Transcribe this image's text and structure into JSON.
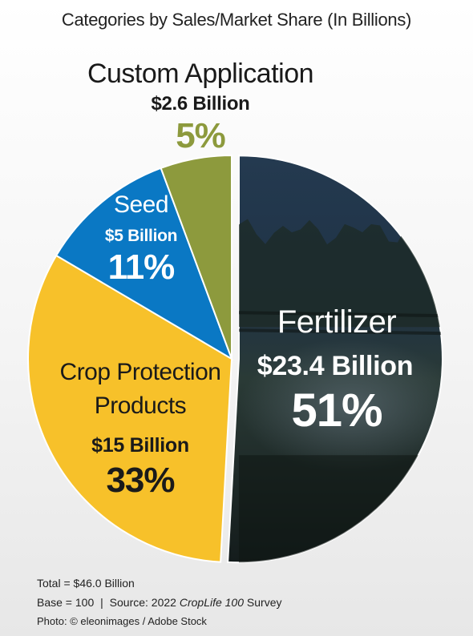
{
  "title": "Categories by Sales/Market Share (In Billions)",
  "chart_data": {
    "type": "pie",
    "slices": [
      {
        "name": "Fertilizer",
        "amount_label": "$23.4 Billion",
        "percent_label": "51%",
        "value": 23.4,
        "percent": 51,
        "color": "#1e3448"
      },
      {
        "name": "Crop Protection Products",
        "name_lines": [
          "Crop Protection",
          "Products"
        ],
        "amount_label": "$15 Billion",
        "percent_label": "33%",
        "value": 15,
        "percent": 33,
        "color": "#f7c12a"
      },
      {
        "name": "Seed",
        "amount_label": "$5 Billion",
        "percent_label": "11%",
        "value": 5,
        "percent": 11,
        "color": "#0a78c4"
      },
      {
        "name": "Custom Application",
        "amount_label": "$2.6 Billion",
        "percent_label": "5%",
        "value": 2.6,
        "percent": 5,
        "color": "#8d9a3d"
      }
    ],
    "total_label": "Total = $46.0 Billion"
  },
  "footer": {
    "base": "Base = 100",
    "separator": "|",
    "source_prefix": "Source: 2022",
    "source_italic": "CropLife 100",
    "source_suffix": "Survey",
    "photo_credit": "Photo: © eleonimages / Adobe Stock"
  },
  "colors": {
    "fertilizer_text": "#ffffff",
    "custom_pct": "#8d9a3d"
  }
}
